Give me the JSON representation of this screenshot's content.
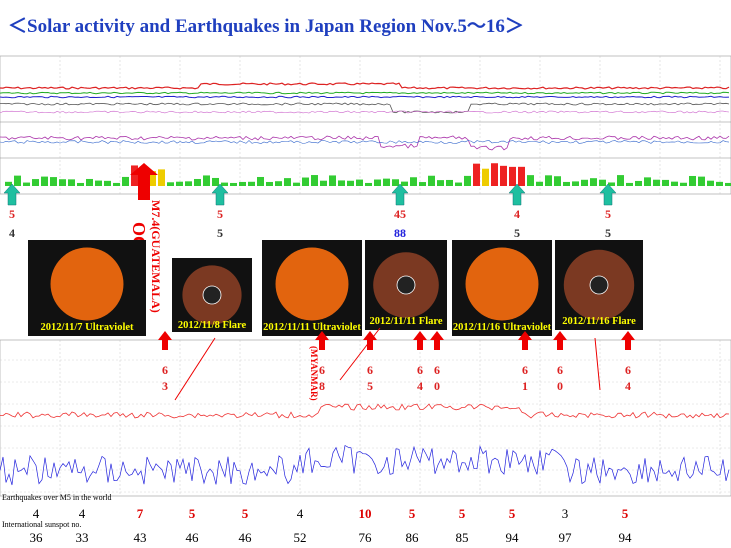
{
  "title": "＜Solar activity and Earthquakes  in Japan Region Nov.5～16＞",
  "arrow_labels": [
    [
      "5",
      "4"
    ],
    [
      "5",
      "5"
    ],
    [
      "45",
      "88"
    ],
    [
      "4",
      "5"
    ],
    [
      "5",
      "5"
    ]
  ],
  "occur": {
    "label": "M7.4(GUATEMALA)",
    "word": "OCCUR"
  },
  "images": [
    "2012/11/7 Ultraviolet",
    "2012/11/8 Flare",
    "2012/11/11 Ultraviolet",
    "2012/11/11 Flare",
    "2012/11/16 Ultraviolet",
    "2012/11/16 Flare"
  ],
  "red_arrows": [
    [
      "6",
      "3"
    ],
    [
      "6",
      "8"
    ],
    [
      "6",
      "5"
    ],
    [
      "6",
      "4"
    ],
    [
      "6",
      "0"
    ],
    [
      "6",
      "1"
    ],
    [
      "6",
      "0"
    ],
    [
      "6",
      "4"
    ]
  ],
  "myanmar": "(MYANMAR)",
  "world_label": "Earthquakes over M5 in the world",
  "world_counts": [
    4,
    4,
    7,
    5,
    5,
    4,
    10,
    5,
    5,
    5,
    3,
    5
  ],
  "sunspot_label": "International sunspot no.",
  "sunspot_numbers": [
    36,
    33,
    43,
    46,
    46,
    52,
    76,
    86,
    85,
    94,
    97,
    94
  ]
}
